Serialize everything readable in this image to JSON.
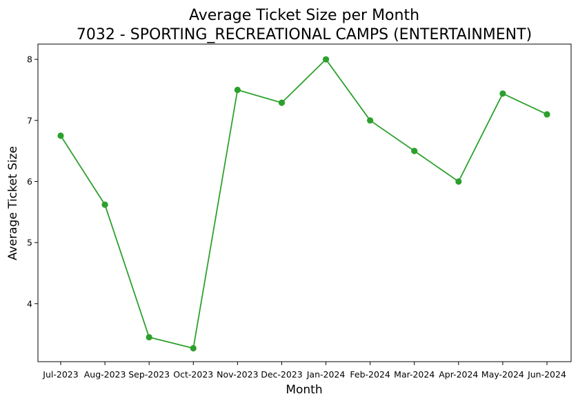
{
  "chart_data": {
    "type": "line",
    "title": "Average Ticket Size per Month",
    "subtitle": "7032 - SPORTING_RECREATIONAL CAMPS (ENTERTAINMENT)",
    "xlabel": "Month",
    "ylabel": "Average Ticket Size",
    "categories": [
      "Jul-2023",
      "Aug-2023",
      "Sep-2023",
      "Oct-2023",
      "Nov-2023",
      "Dec-2023",
      "Jan-2024",
      "Feb-2024",
      "Mar-2024",
      "Apr-2024",
      "May-2024",
      "Jun-2024"
    ],
    "series": [
      {
        "values": [
          6.75,
          5.62,
          3.45,
          3.27,
          7.5,
          7.29,
          8.0,
          7.0,
          6.5,
          6.0,
          7.44,
          7.1
        ],
        "color": "#2ca02c"
      }
    ],
    "ylim": [
      3.05,
      8.25
    ],
    "yticks": [
      4,
      5,
      6,
      7,
      8
    ],
    "grid": false,
    "marker": "circle"
  }
}
